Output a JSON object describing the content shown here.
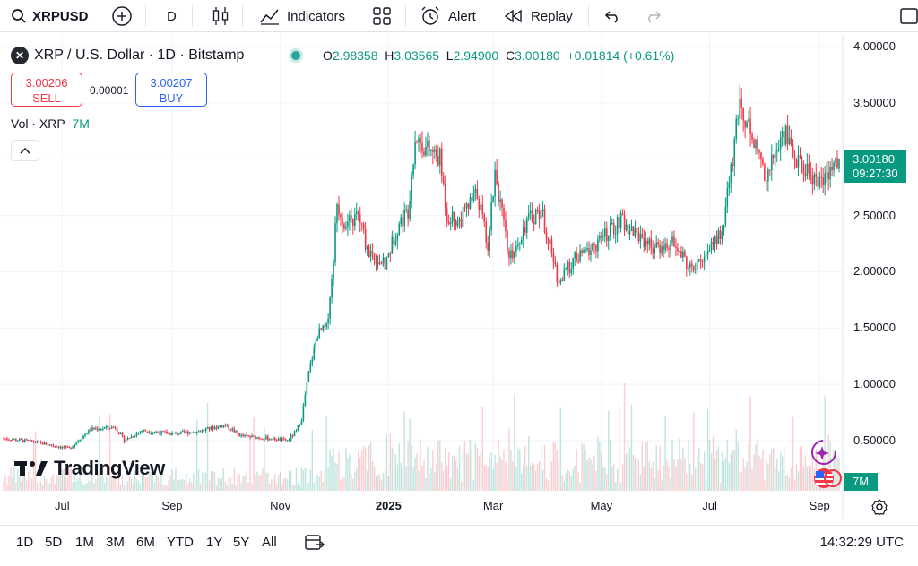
{
  "toolbar": {
    "symbol": "XRPUSD",
    "interval": "D",
    "indicators_label": "Indicators",
    "alert_label": "Alert",
    "replay_label": "Replay"
  },
  "legend": {
    "title": "XRP / U.S. Dollar · 1D · Bitstamp",
    "o_label": "O",
    "o_value": "2.98358",
    "h_label": "H",
    "h_value": "3.03565",
    "l_label": "L",
    "l_value": "2.94900",
    "c_label": "C",
    "c_value": "3.00180",
    "change": "+0.01814 (+0.61%)"
  },
  "trade": {
    "sell_price": "3.00206",
    "sell_label": "SELL",
    "spread": "0.00001",
    "buy_price": "3.00207",
    "buy_label": "BUY"
  },
  "volume_legend": {
    "label": "Vol · XRP",
    "value": "7M"
  },
  "price_scale": {
    "last_price": "3.00180",
    "countdown": "09:27:30",
    "volume_tag": "7M"
  },
  "bottom_bar": {
    "ranges": [
      "1D",
      "5D",
      "1M",
      "3M",
      "6M",
      "YTD",
      "1Y",
      "5Y",
      "All"
    ],
    "clock": "14:32:29 UTC"
  },
  "watermark": "TradingView",
  "colors": {
    "up": "#089981",
    "down": "#f23645",
    "grid": "#f0f3fa",
    "accent": "#2962ff"
  },
  "chart_data": {
    "type": "candlestick",
    "title": "XRP / U.S. Dollar · 1D · Bitstamp",
    "ylim": [
      0.3,
      4.0
    ],
    "y_ticks": [
      "4.00000",
      "3.50000",
      "3.00000",
      "2.50000",
      "2.00000",
      "1.50000",
      "1.00000",
      "0.50000"
    ],
    "y_tick_values": [
      4.0,
      3.5,
      3.0,
      2.5,
      2.0,
      1.5,
      1.0,
      0.5
    ],
    "x_ticks": [
      "Jul",
      "Sep",
      "Nov",
      "2025",
      "Mar",
      "May",
      "Jul",
      "Sep"
    ],
    "x_tick_dates": [
      "2024-07-01",
      "2024-09-01",
      "2024-11-01",
      "2025-01-01",
      "2025-03-01",
      "2025-05-01",
      "2025-07-01",
      "2025-09-01"
    ],
    "bold_tick": "2025",
    "x_range": [
      "2024-05-29",
      "2025-09-12"
    ],
    "last_close": 3.0018,
    "close_path": [
      [
        "2024-05-29",
        0.52
      ],
      [
        "2024-06-15",
        0.49
      ],
      [
        "2024-07-05",
        0.43
      ],
      [
        "2024-07-17",
        0.6
      ],
      [
        "2024-07-31",
        0.62
      ],
      [
        "2024-08-05",
        0.5
      ],
      [
        "2024-08-15",
        0.59
      ],
      [
        "2024-09-01",
        0.56
      ],
      [
        "2024-09-15",
        0.58
      ],
      [
        "2024-10-01",
        0.64
      ],
      [
        "2024-10-10",
        0.54
      ],
      [
        "2024-10-25",
        0.52
      ],
      [
        "2024-11-05",
        0.5
      ],
      [
        "2024-11-10",
        0.58
      ],
      [
        "2024-11-13",
        0.7
      ],
      [
        "2024-11-17",
        1.1
      ],
      [
        "2024-11-22",
        1.45
      ],
      [
        "2024-11-27",
        1.5
      ],
      [
        "2024-11-30",
        1.9
      ],
      [
        "2024-12-03",
        2.6
      ],
      [
        "2024-12-08",
        2.4
      ],
      [
        "2024-12-15",
        2.5
      ],
      [
        "2024-12-20",
        2.2
      ],
      [
        "2024-12-30",
        2.05
      ],
      [
        "2025-01-06",
        2.4
      ],
      [
        "2025-01-12",
        2.55
      ],
      [
        "2025-01-16",
        3.2
      ],
      [
        "2025-01-22",
        3.1
      ],
      [
        "2025-01-30",
        3.0
      ],
      [
        "2025-02-03",
        2.5
      ],
      [
        "2025-02-10",
        2.45
      ],
      [
        "2025-02-20",
        2.7
      ],
      [
        "2025-02-26",
        2.25
      ],
      [
        "2025-03-02",
        2.9
      ],
      [
        "2025-03-10",
        2.1
      ],
      [
        "2025-03-20",
        2.45
      ],
      [
        "2025-03-28",
        2.55
      ],
      [
        "2025-04-07",
        1.9
      ],
      [
        "2025-04-15",
        2.1
      ],
      [
        "2025-04-25",
        2.2
      ],
      [
        "2025-05-12",
        2.45
      ],
      [
        "2025-05-20",
        2.35
      ],
      [
        "2025-06-01",
        2.2
      ],
      [
        "2025-06-10",
        2.25
      ],
      [
        "2025-06-22",
        2.0
      ],
      [
        "2025-06-30",
        2.2
      ],
      [
        "2025-07-08",
        2.35
      ],
      [
        "2025-07-13",
        2.9
      ],
      [
        "2025-07-18",
        3.5
      ],
      [
        "2025-07-24",
        3.25
      ],
      [
        "2025-08-02",
        2.85
      ],
      [
        "2025-08-08",
        3.1
      ],
      [
        "2025-08-13",
        3.25
      ],
      [
        "2025-08-18",
        3.0
      ],
      [
        "2025-08-25",
        2.9
      ],
      [
        "2025-09-01",
        2.8
      ],
      [
        "2025-09-06",
        2.85
      ],
      [
        "2025-09-12",
        3.0
      ]
    ]
  }
}
